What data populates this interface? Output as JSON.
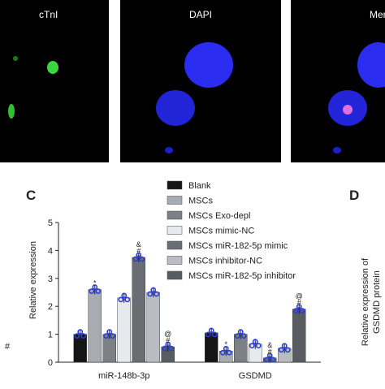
{
  "panels": {
    "image_labels": [
      "cTnI",
      "DAPI",
      "Mer"
    ],
    "letters": [
      "C",
      "D"
    ],
    "d_axis_label": [
      "Relative expression of",
      "GSDMD protein"
    ],
    "left_fragment": "#"
  },
  "chart_data": {
    "type": "bar",
    "y_label": "Relative expression",
    "categories": [
      "miR-148b-3p",
      "GSDMD"
    ],
    "ylim": [
      0,
      5
    ],
    "yticks": [
      0,
      1,
      2,
      3,
      4,
      5
    ],
    "series": [
      {
        "name": "Blank",
        "color": "#151515",
        "values": [
          1.0,
          1.05
        ],
        "significance": [
          null,
          null
        ]
      },
      {
        "name": "MSCs",
        "color": "#a7abb2",
        "values": [
          2.6,
          0.4
        ],
        "significance": [
          "*",
          "*"
        ]
      },
      {
        "name": "MSCs Exo-depl",
        "color": "#7d8187",
        "values": [
          1.0,
          1.0
        ],
        "significance": [
          null,
          null
        ]
      },
      {
        "name": "MSCs mimic-NC",
        "color": "#e6e9ee",
        "values": [
          2.3,
          0.65
        ],
        "significance": [
          null,
          null
        ]
      },
      {
        "name": "MSCs miR-182-5p mimic",
        "color": "#6a6e73",
        "values": [
          3.75,
          0.15
        ],
        "significance": [
          "&#*",
          "&#*"
        ]
      },
      {
        "name": "MSCs inhibitor-NC",
        "color": "#b9bcc2",
        "values": [
          2.5,
          0.5
        ],
        "significance": [
          null,
          null
        ]
      },
      {
        "name": "MSCs miR-182-5p inhibitor",
        "color": "#595c61",
        "values": [
          0.55,
          1.9
        ],
        "significance": [
          "@#*",
          "@#*"
        ]
      }
    ]
  }
}
